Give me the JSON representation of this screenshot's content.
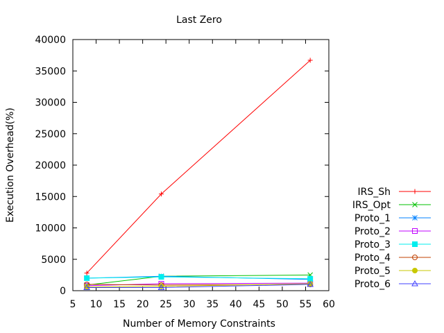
{
  "chart_data": {
    "type": "line",
    "title": "Last Zero",
    "xlabel": "Number of Memory Constraints",
    "ylabel": "Execution Overhead(%)",
    "xlim": [
      5,
      60
    ],
    "ylim": [
      0,
      40000
    ],
    "xticks": [
      5,
      10,
      15,
      20,
      25,
      30,
      35,
      40,
      45,
      50,
      55,
      60
    ],
    "yticks": [
      0,
      5000,
      10000,
      15000,
      20000,
      25000,
      30000,
      35000,
      40000
    ],
    "grid": false,
    "legend_position": "right",
    "series": [
      {
        "name": "IRS_Sh",
        "color": "#ff0000",
        "marker": "plus",
        "x": [
          8,
          24,
          56
        ],
        "y": [
          2800,
          15400,
          36700
        ]
      },
      {
        "name": "IRS_Opt",
        "color": "#00c000",
        "marker": "cross",
        "x": [
          8,
          24,
          56
        ],
        "y": [
          900,
          2300,
          2500
        ]
      },
      {
        "name": "Proto_1",
        "color": "#0080ff",
        "marker": "star",
        "x": [
          8,
          24,
          56
        ],
        "y": [
          2000,
          2300,
          1800
        ]
      },
      {
        "name": "Proto_2",
        "color": "#c000ff",
        "marker": "square-open",
        "x": [
          8,
          24,
          56
        ],
        "y": [
          800,
          1100,
          1200
        ]
      },
      {
        "name": "Proto_3",
        "color": "#00eeee",
        "marker": "square-filled",
        "x": [
          8,
          24,
          56
        ],
        "y": [
          2000,
          2200,
          1900
        ]
      },
      {
        "name": "Proto_4",
        "color": "#c04000",
        "marker": "circle-open",
        "x": [
          8,
          24,
          56
        ],
        "y": [
          1000,
          900,
          1000
        ]
      },
      {
        "name": "Proto_5",
        "color": "#c8c800",
        "marker": "circle-filled",
        "x": [
          8,
          24,
          56
        ],
        "y": [
          600,
          700,
          1100
        ]
      },
      {
        "name": "Proto_6",
        "color": "#4040ff",
        "marker": "triangle-open",
        "x": [
          8,
          24,
          56
        ],
        "y": [
          500,
          500,
          1000
        ]
      }
    ]
  }
}
